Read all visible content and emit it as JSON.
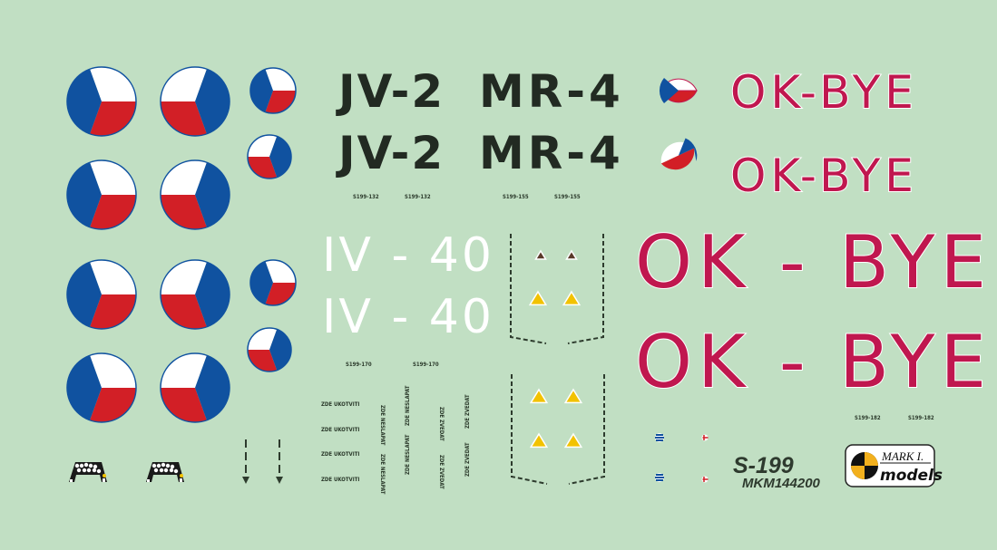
{
  "sheet": {
    "background": "#c1dfc3",
    "colors": {
      "blue": "#1052a0",
      "red": "#d21f26",
      "white": "#ffffff",
      "ok_red": "#c0174f",
      "dark": "#222a22",
      "yellow": "#f2c200"
    },
    "registrations": {
      "jv": "JV-2",
      "mr": "MR-4",
      "iv": "IV - 40",
      "ok_small": "OK-BYE",
      "ok_large": "OK - BYE"
    },
    "decal_numbers": {
      "n132": "S199-132",
      "n155": "S199-155",
      "n170": "S199-170",
      "n182": "S199-182"
    },
    "stencils": {
      "ukotviti": "ZDE UKOTVITI",
      "zvedat": "ZDE ZVEDAT",
      "nesla": "ZDE NESLAPAT"
    },
    "product": {
      "model": "S-199",
      "code": "MKM144200",
      "logo_top": "MARK I.",
      "logo_bottom": "models"
    }
  }
}
